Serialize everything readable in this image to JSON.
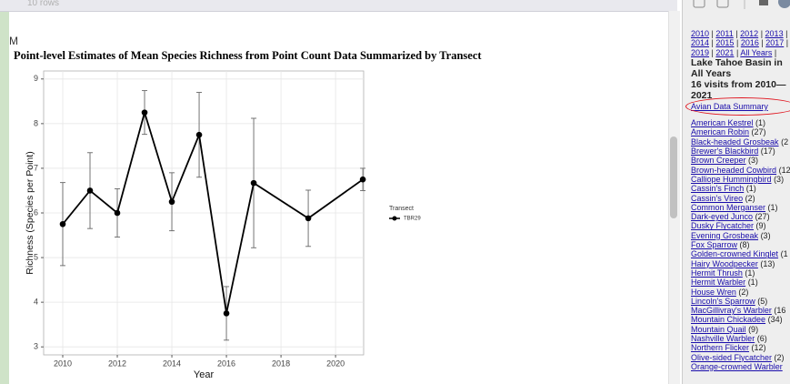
{
  "header": {
    "rows_text": "10 rows",
    "side_letter": "M"
  },
  "chart_data": {
    "type": "line",
    "title": "Point-level Estimates of Mean Species Richness from Point Count Data Summarized by Transect",
    "x_label": "Year",
    "y_label": "Richness (Species per Point)",
    "x": [
      2010,
      2011,
      2012,
      2013,
      2014,
      2015,
      2016,
      2017,
      2019,
      2021
    ],
    "series": [
      {
        "name": "TBR29",
        "color": "#000000",
        "values": [
          5.75,
          6.5,
          6.0,
          8.25,
          6.25,
          7.75,
          3.75,
          6.67,
          5.88,
          6.75
        ],
        "errors": [
          0.93,
          0.85,
          0.54,
          0.49,
          0.65,
          0.95,
          0.6,
          1.45,
          0.63,
          0.25
        ]
      }
    ],
    "legend_title": "Transect",
    "legend": "right",
    "xlim": [
      2009.3,
      2021.03
    ],
    "xticks": [
      2010,
      2012,
      2014,
      2016,
      2018,
      2020
    ],
    "ylim": [
      2.82,
      9.18
    ],
    "yticks": [
      3,
      4,
      5,
      6,
      7,
      8,
      9
    ],
    "grid": true
  },
  "sidebar": {
    "year_links": [
      "2010",
      "2011",
      "2012",
      "2013",
      "2014",
      "2015",
      "2016",
      "2017",
      "2019",
      "2021",
      "All Years"
    ],
    "separator": "|",
    "heading": "Lake Tahoe Basin in All Years",
    "visits": "16 visits from 2010—2021",
    "summary_link": "Avian Data Summary",
    "species": [
      {
        "name": "American Kestrel",
        "count": "(1)"
      },
      {
        "name": "American Robin",
        "count": "(27)"
      },
      {
        "name": "Black-headed Grosbeak",
        "count": "(2"
      },
      {
        "name": "Brewer's Blackbird",
        "count": "(17)"
      },
      {
        "name": "Brown Creeper",
        "count": "(3)"
      },
      {
        "name": "Brown-headed Cowbird",
        "count": "(12)"
      },
      {
        "name": "Calliope Hummingbird",
        "count": "(3)"
      },
      {
        "name": "Cassin's Finch",
        "count": "(1)"
      },
      {
        "name": "Cassin's Vireo",
        "count": "(2)"
      },
      {
        "name": "Common Merganser",
        "count": "(1)"
      },
      {
        "name": "Dark-eyed Junco",
        "count": "(27)"
      },
      {
        "name": "Dusky Flycatcher",
        "count": "(9)"
      },
      {
        "name": "Evening Grosbeak",
        "count": "(3)"
      },
      {
        "name": "Fox Sparrow",
        "count": "(8)"
      },
      {
        "name": "Golden-crowned Kinglet",
        "count": "(1"
      },
      {
        "name": "Hairy Woodpecker",
        "count": "(13)"
      },
      {
        "name": "Hermit Thrush",
        "count": "(1)"
      },
      {
        "name": "Hermit Warbler",
        "count": "(1)"
      },
      {
        "name": "House Wren",
        "count": "(2)"
      },
      {
        "name": "Lincoln's Sparrow",
        "count": "(5)"
      },
      {
        "name": "MacGillivray's Warbler",
        "count": "(16"
      },
      {
        "name": "Mountain Chickadee",
        "count": "(34)"
      },
      {
        "name": "Mountain Quail",
        "count": "(9)"
      },
      {
        "name": "Nashville Warbler",
        "count": "(6)"
      },
      {
        "name": "Northern Flicker",
        "count": "(12)"
      },
      {
        "name": "Olive-sided Flycatcher",
        "count": "(2)"
      },
      {
        "name": "Orange-crowned Warbler",
        "count": ""
      }
    ]
  }
}
